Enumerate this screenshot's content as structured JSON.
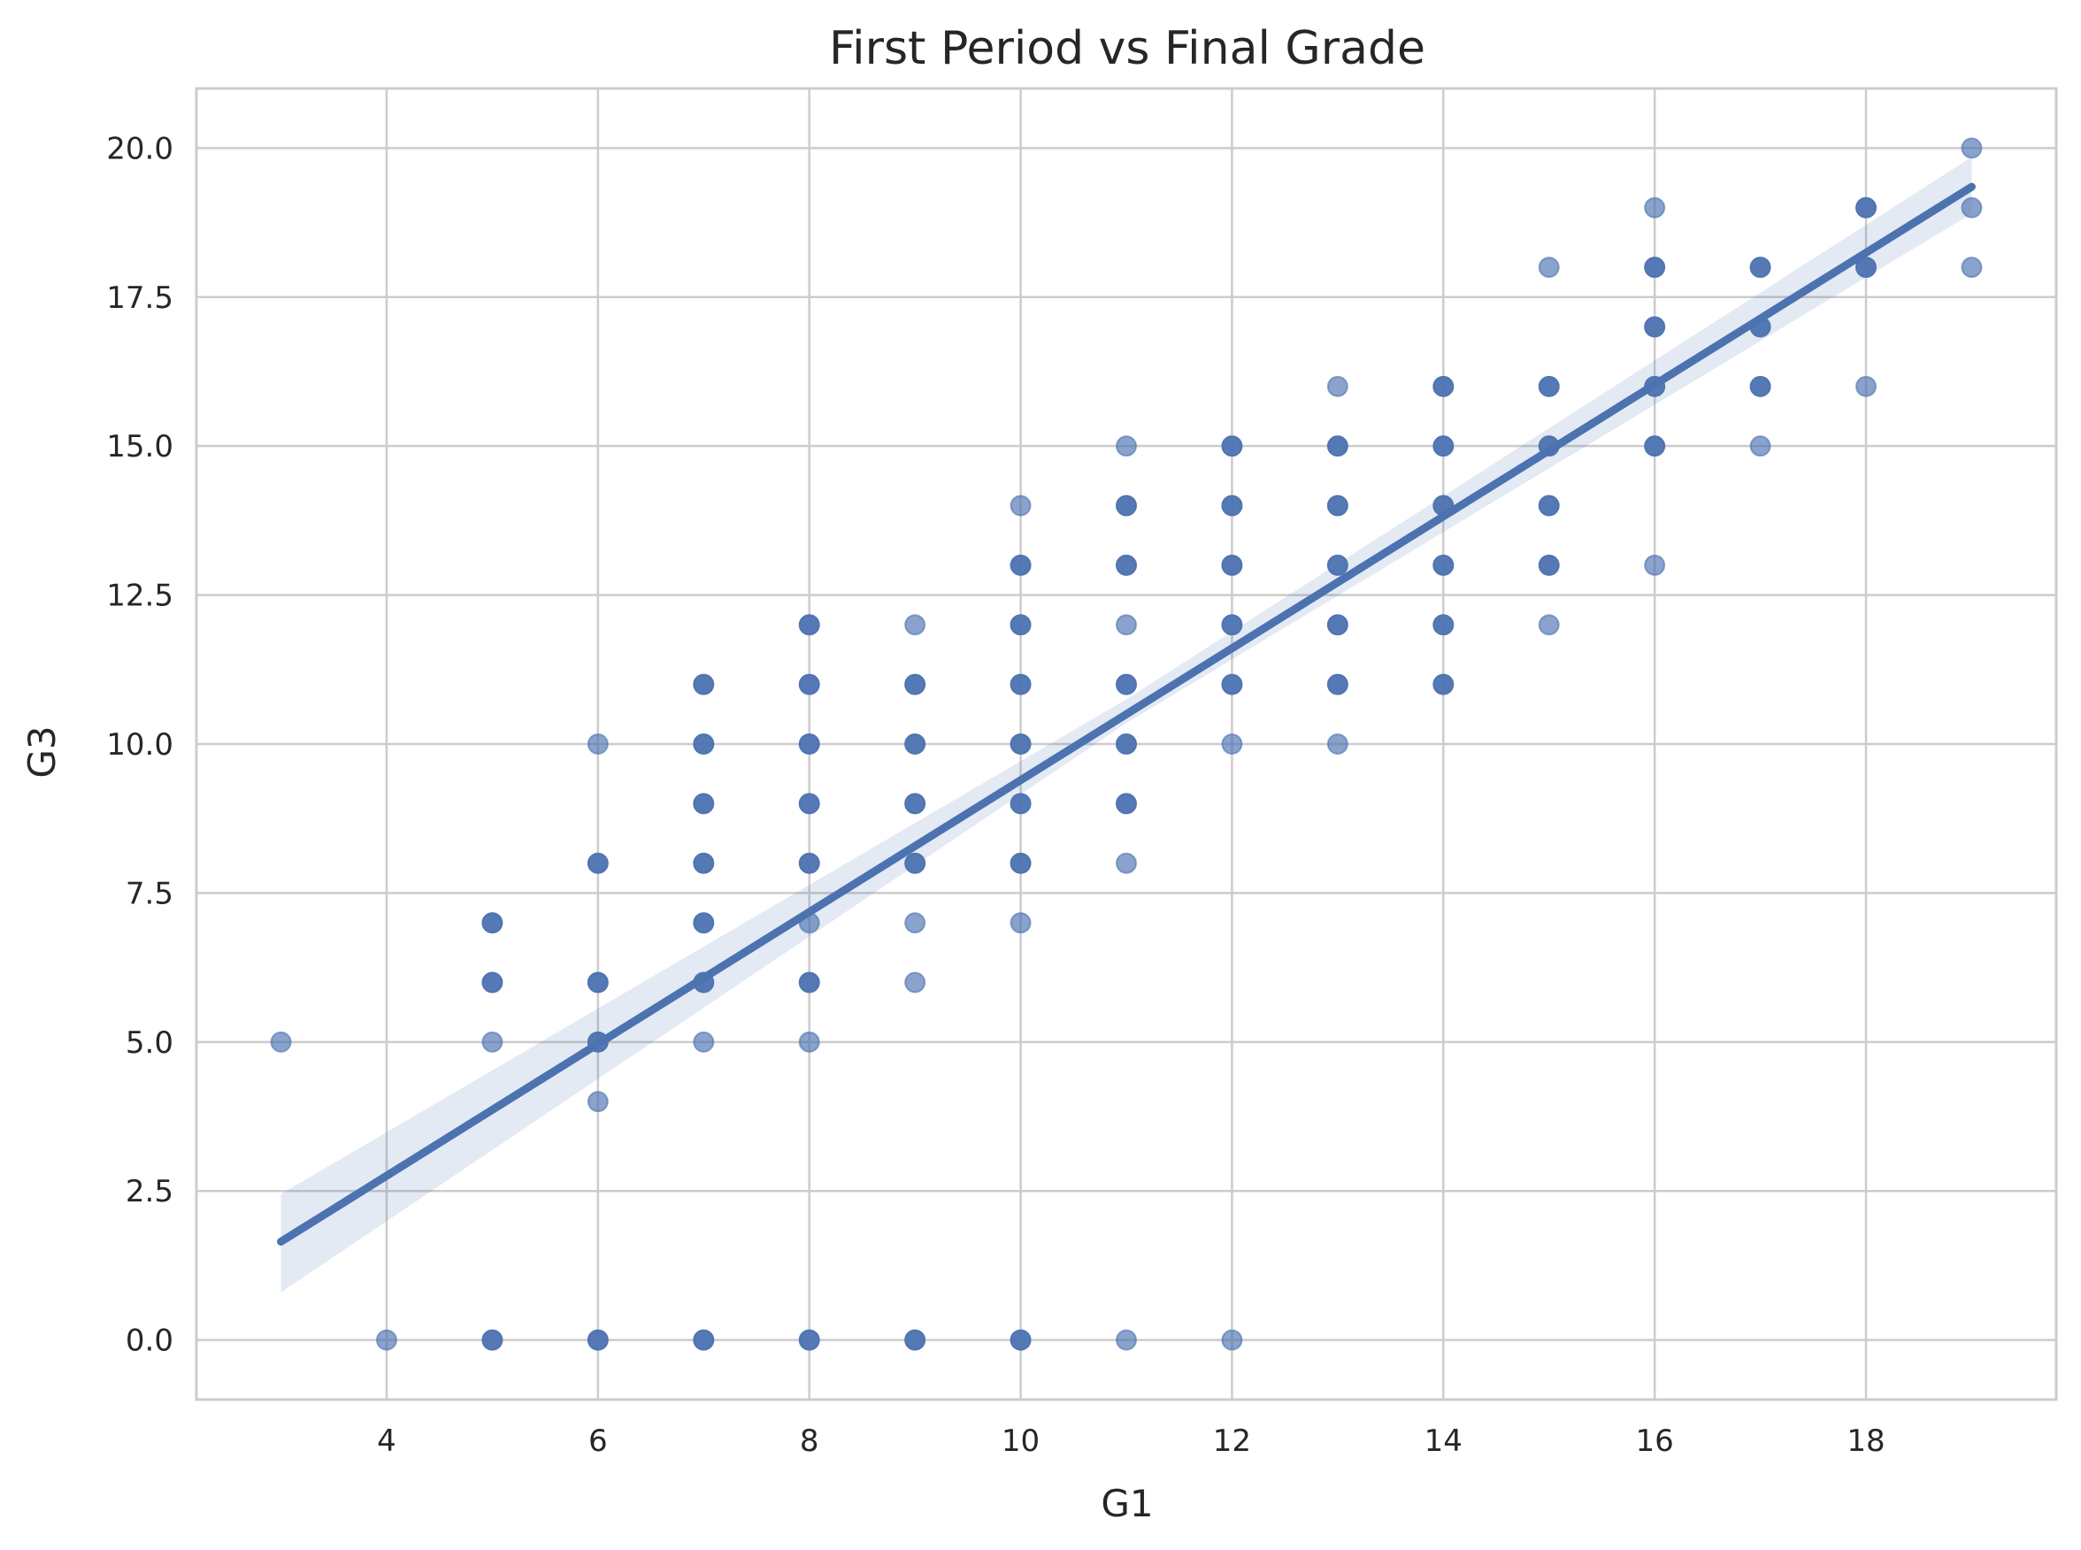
{
  "chart_data": {
    "type": "scatter",
    "title": "First Period vs Final Grade",
    "xlabel": "G1",
    "ylabel": "G3",
    "xlim": [
      2.2,
      19.8
    ],
    "ylim": [
      -1.0,
      21.0
    ],
    "x_ticks": [
      4,
      6,
      8,
      10,
      12,
      14,
      16,
      18
    ],
    "x_tick_labels": [
      "4",
      "6",
      "8",
      "10",
      "12",
      "14",
      "16",
      "18"
    ],
    "y_ticks": [
      0,
      2.5,
      5,
      7.5,
      10,
      12.5,
      15,
      17.5,
      20
    ],
    "y_tick_labels": [
      "0.0",
      "2.5",
      "5.0",
      "7.5",
      "10.0",
      "12.5",
      "15.0",
      "17.5",
      "20.0"
    ],
    "grid": true,
    "colors": {
      "points": "#4c72b0",
      "line": "#4c72b0",
      "ci_band": "#4c72b0",
      "grid": "#cccccc",
      "text": "#262626"
    },
    "points": [
      {
        "x": 3,
        "y": 5,
        "dense": false
      },
      {
        "x": 4,
        "y": 0,
        "dense": false
      },
      {
        "x": 5,
        "y": 0,
        "dense": true
      },
      {
        "x": 5,
        "y": 5,
        "dense": false
      },
      {
        "x": 5,
        "y": 6,
        "dense": true
      },
      {
        "x": 5,
        "y": 7,
        "dense": true
      },
      {
        "x": 6,
        "y": 0,
        "dense": true
      },
      {
        "x": 6,
        "y": 4,
        "dense": false
      },
      {
        "x": 6,
        "y": 5,
        "dense": true
      },
      {
        "x": 6,
        "y": 6,
        "dense": true
      },
      {
        "x": 6,
        "y": 8,
        "dense": true
      },
      {
        "x": 6,
        "y": 10,
        "dense": false
      },
      {
        "x": 7,
        "y": 0,
        "dense": true
      },
      {
        "x": 7,
        "y": 5,
        "dense": false
      },
      {
        "x": 7,
        "y": 6,
        "dense": true
      },
      {
        "x": 7,
        "y": 7,
        "dense": true
      },
      {
        "x": 7,
        "y": 8,
        "dense": true
      },
      {
        "x": 7,
        "y": 9,
        "dense": true
      },
      {
        "x": 7,
        "y": 10,
        "dense": true
      },
      {
        "x": 7,
        "y": 11,
        "dense": true
      },
      {
        "x": 8,
        "y": 0,
        "dense": true
      },
      {
        "x": 8,
        "y": 5,
        "dense": false
      },
      {
        "x": 8,
        "y": 6,
        "dense": true
      },
      {
        "x": 8,
        "y": 7,
        "dense": false
      },
      {
        "x": 8,
        "y": 8,
        "dense": true
      },
      {
        "x": 8,
        "y": 9,
        "dense": true
      },
      {
        "x": 8,
        "y": 10,
        "dense": true
      },
      {
        "x": 8,
        "y": 11,
        "dense": true
      },
      {
        "x": 8,
        "y": 12,
        "dense": true
      },
      {
        "x": 9,
        "y": 0,
        "dense": true
      },
      {
        "x": 9,
        "y": 6,
        "dense": false
      },
      {
        "x": 9,
        "y": 7,
        "dense": false
      },
      {
        "x": 9,
        "y": 8,
        "dense": true
      },
      {
        "x": 9,
        "y": 9,
        "dense": true
      },
      {
        "x": 9,
        "y": 10,
        "dense": true
      },
      {
        "x": 9,
        "y": 11,
        "dense": true
      },
      {
        "x": 9,
        "y": 12,
        "dense": false
      },
      {
        "x": 10,
        "y": 0,
        "dense": true
      },
      {
        "x": 10,
        "y": 7,
        "dense": false
      },
      {
        "x": 10,
        "y": 8,
        "dense": true
      },
      {
        "x": 10,
        "y": 9,
        "dense": true
      },
      {
        "x": 10,
        "y": 10,
        "dense": true
      },
      {
        "x": 10,
        "y": 11,
        "dense": true
      },
      {
        "x": 10,
        "y": 12,
        "dense": true
      },
      {
        "x": 10,
        "y": 13,
        "dense": true
      },
      {
        "x": 10,
        "y": 14,
        "dense": false
      },
      {
        "x": 11,
        "y": 0,
        "dense": false
      },
      {
        "x": 11,
        "y": 8,
        "dense": false
      },
      {
        "x": 11,
        "y": 9,
        "dense": true
      },
      {
        "x": 11,
        "y": 10,
        "dense": true
      },
      {
        "x": 11,
        "y": 11,
        "dense": true
      },
      {
        "x": 11,
        "y": 12,
        "dense": false
      },
      {
        "x": 11,
        "y": 13,
        "dense": true
      },
      {
        "x": 11,
        "y": 14,
        "dense": true
      },
      {
        "x": 11,
        "y": 15,
        "dense": false
      },
      {
        "x": 12,
        "y": 0,
        "dense": false
      },
      {
        "x": 12,
        "y": 10,
        "dense": false
      },
      {
        "x": 12,
        "y": 11,
        "dense": true
      },
      {
        "x": 12,
        "y": 12,
        "dense": true
      },
      {
        "x": 12,
        "y": 13,
        "dense": true
      },
      {
        "x": 12,
        "y": 14,
        "dense": true
      },
      {
        "x": 12,
        "y": 15,
        "dense": true
      },
      {
        "x": 13,
        "y": 10,
        "dense": false
      },
      {
        "x": 13,
        "y": 11,
        "dense": true
      },
      {
        "x": 13,
        "y": 12,
        "dense": true
      },
      {
        "x": 13,
        "y": 13,
        "dense": true
      },
      {
        "x": 13,
        "y": 14,
        "dense": true
      },
      {
        "x": 13,
        "y": 15,
        "dense": true
      },
      {
        "x": 13,
        "y": 16,
        "dense": false
      },
      {
        "x": 14,
        "y": 11,
        "dense": true
      },
      {
        "x": 14,
        "y": 12,
        "dense": true
      },
      {
        "x": 14,
        "y": 13,
        "dense": true
      },
      {
        "x": 14,
        "y": 14,
        "dense": true
      },
      {
        "x": 14,
        "y": 15,
        "dense": true
      },
      {
        "x": 14,
        "y": 16,
        "dense": true
      },
      {
        "x": 15,
        "y": 12,
        "dense": false
      },
      {
        "x": 15,
        "y": 13,
        "dense": true
      },
      {
        "x": 15,
        "y": 14,
        "dense": true
      },
      {
        "x": 15,
        "y": 15,
        "dense": true
      },
      {
        "x": 15,
        "y": 16,
        "dense": true
      },
      {
        "x": 15,
        "y": 18,
        "dense": false
      },
      {
        "x": 16,
        "y": 13,
        "dense": false
      },
      {
        "x": 16,
        "y": 15,
        "dense": true
      },
      {
        "x": 16,
        "y": 16,
        "dense": true
      },
      {
        "x": 16,
        "y": 17,
        "dense": true
      },
      {
        "x": 16,
        "y": 18,
        "dense": true
      },
      {
        "x": 16,
        "y": 19,
        "dense": false
      },
      {
        "x": 17,
        "y": 15,
        "dense": false
      },
      {
        "x": 17,
        "y": 16,
        "dense": true
      },
      {
        "x": 17,
        "y": 17,
        "dense": true
      },
      {
        "x": 17,
        "y": 18,
        "dense": true
      },
      {
        "x": 18,
        "y": 16,
        "dense": false
      },
      {
        "x": 18,
        "y": 18,
        "dense": true
      },
      {
        "x": 18,
        "y": 19,
        "dense": true
      },
      {
        "x": 19,
        "y": 18,
        "dense": false
      },
      {
        "x": 19,
        "y": 19,
        "dense": false
      },
      {
        "x": 19,
        "y": 20,
        "dense": false
      }
    ],
    "regression": {
      "x_start": 3,
      "y_start": 1.65,
      "x_end": 19,
      "y_end": 19.35,
      "ci_band": [
        {
          "x": 3,
          "lower": 0.8,
          "upper": 2.45
        },
        {
          "x": 11,
          "lower": 10.35,
          "upper": 10.75
        },
        {
          "x": 19,
          "lower": 18.9,
          "upper": 19.85
        }
      ]
    }
  }
}
